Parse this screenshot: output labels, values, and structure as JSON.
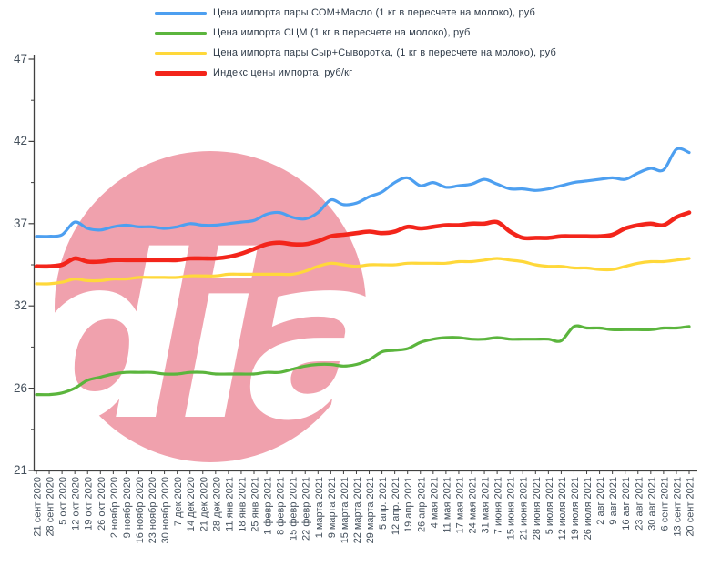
{
  "chart_data": {
    "type": "line",
    "title": "",
    "xlabel": "",
    "ylabel": "",
    "grid": false,
    "legend_position": "top-left",
    "ylim": [
      21.2,
      47.2
    ],
    "ytick_labels": [
      "47",
      "42",
      "37",
      "32",
      "26",
      "21"
    ],
    "categories": [
      "21 сент 2020",
      "28 сент 2020",
      "5 окт 2020",
      "12 окт 2020",
      "19 окт 2020",
      "26 окт 2020",
      "2 ноябр 2020",
      "9 ноябр 2020",
      "16 ноябр 2020",
      "23 ноябр 2020",
      "30 ноябр 2020",
      "7 дек 2020",
      "14 дек 2020",
      "21 дек 2020",
      "28 дек 2020",
      "11 янв 2021",
      "18 янв 2021",
      "25 янв 2021",
      "1 февр 2021",
      "8 февр 2021",
      "15 февр 2021",
      "22 февр 2021",
      "1 марта 2021",
      "9 марта 2021",
      "15 марта 2021",
      "22 марта 2021",
      "29 марта 2021",
      "5 апр. 2021",
      "12 апр. 2021",
      "19 апр 2021",
      "26 апр 2021",
      "4 мая 2021",
      "11 мая 2021",
      "17 мая 2021",
      "24 мая 2021",
      "31 мая 2021",
      "7 июня 2021",
      "15 июня 2021",
      "21 июня 2021",
      "28 июня 2021",
      "5 июля 2021",
      "12 июля 2021",
      "19 июля 2021",
      "26 июля 2021",
      "2 авг 2021",
      "9 авг 2021",
      "16 авг 2021",
      "23 авг 2021",
      "30 авг 2021",
      "6 сент 2021",
      "13 сент 2021",
      "20 сент 2021"
    ],
    "series": [
      {
        "name": "som-maslo",
        "legend": "Цена импорта пары СОМ+Масло  (1 кг в пересчете на молоко), руб",
        "color": "#4d9ff0",
        "width": 3.2,
        "values": [
          36.0,
          36.0,
          36.1,
          36.9,
          36.5,
          36.4,
          36.6,
          36.7,
          36.6,
          36.6,
          36.5,
          36.6,
          36.8,
          36.7,
          36.7,
          36.8,
          36.9,
          37.0,
          37.4,
          37.5,
          37.2,
          37.1,
          37.5,
          38.3,
          38.0,
          38.1,
          38.5,
          38.8,
          39.4,
          39.7,
          39.2,
          39.4,
          39.1,
          39.2,
          39.3,
          39.6,
          39.3,
          39.0,
          39.0,
          38.9,
          39.0,
          39.2,
          39.4,
          39.5,
          39.6,
          39.7,
          39.6,
          40.0,
          40.3,
          40.2,
          41.5,
          41.3
        ]
      },
      {
        "name": "scm",
        "legend": "Цена импорта СЦМ  (1 кг в пересчете на молоко), руб",
        "color": "#5bb53d",
        "width": 3.2,
        "values": [
          26.0,
          26.0,
          26.1,
          26.4,
          26.9,
          27.1,
          27.3,
          27.4,
          27.4,
          27.4,
          27.3,
          27.3,
          27.4,
          27.4,
          27.3,
          27.3,
          27.3,
          27.3,
          27.4,
          27.4,
          27.6,
          27.8,
          27.9,
          27.9,
          27.8,
          27.9,
          28.2,
          28.7,
          28.8,
          28.9,
          29.3,
          29.5,
          29.6,
          29.6,
          29.5,
          29.5,
          29.6,
          29.5,
          29.5,
          29.5,
          29.5,
          29.4,
          30.3,
          30.2,
          30.2,
          30.1,
          30.1,
          30.1,
          30.1,
          30.2,
          30.2,
          30.3
        ]
      },
      {
        "name": "syr-syvorotka",
        "legend": "Цена импорта пары Сыр+Сыворотка,  (1 кг в пересчете на молоко), руб",
        "color": "#ffd83a",
        "width": 3.2,
        "values": [
          33.0,
          33.0,
          33.1,
          33.3,
          33.2,
          33.2,
          33.3,
          33.3,
          33.4,
          33.4,
          33.4,
          33.4,
          33.5,
          33.5,
          33.5,
          33.6,
          33.6,
          33.6,
          33.6,
          33.6,
          33.6,
          33.8,
          34.1,
          34.3,
          34.2,
          34.1,
          34.2,
          34.2,
          34.2,
          34.3,
          34.3,
          34.3,
          34.3,
          34.4,
          34.4,
          34.5,
          34.6,
          34.5,
          34.4,
          34.2,
          34.1,
          34.1,
          34.0,
          34.0,
          33.9,
          33.9,
          34.1,
          34.3,
          34.4,
          34.4,
          34.5,
          34.6
        ]
      },
      {
        "name": "import-price-index",
        "legend": "Индекс цены импорта, руб/кг",
        "color": "#f3251b",
        "width": 4.6,
        "values": [
          34.1,
          34.1,
          34.2,
          34.6,
          34.4,
          34.4,
          34.5,
          34.5,
          34.5,
          34.5,
          34.5,
          34.5,
          34.6,
          34.6,
          34.6,
          34.7,
          34.9,
          35.2,
          35.5,
          35.6,
          35.5,
          35.5,
          35.7,
          36.0,
          36.1,
          36.2,
          36.3,
          36.2,
          36.3,
          36.6,
          36.5,
          36.6,
          36.7,
          36.7,
          36.8,
          36.8,
          36.9,
          36.3,
          35.9,
          35.9,
          35.9,
          36.0,
          36.0,
          36.0,
          36.0,
          36.1,
          36.5,
          36.7,
          36.8,
          36.7,
          37.2,
          37.5
        ]
      }
    ]
  },
  "watermark": {
    "text": "dia",
    "circle_color": "#f0a1ad",
    "text_color": "#ffffff"
  },
  "colors": {
    "axis": "#404040",
    "tick_text": "#44505c",
    "legend_text": "#2f3b49",
    "background": "#ffffff"
  }
}
